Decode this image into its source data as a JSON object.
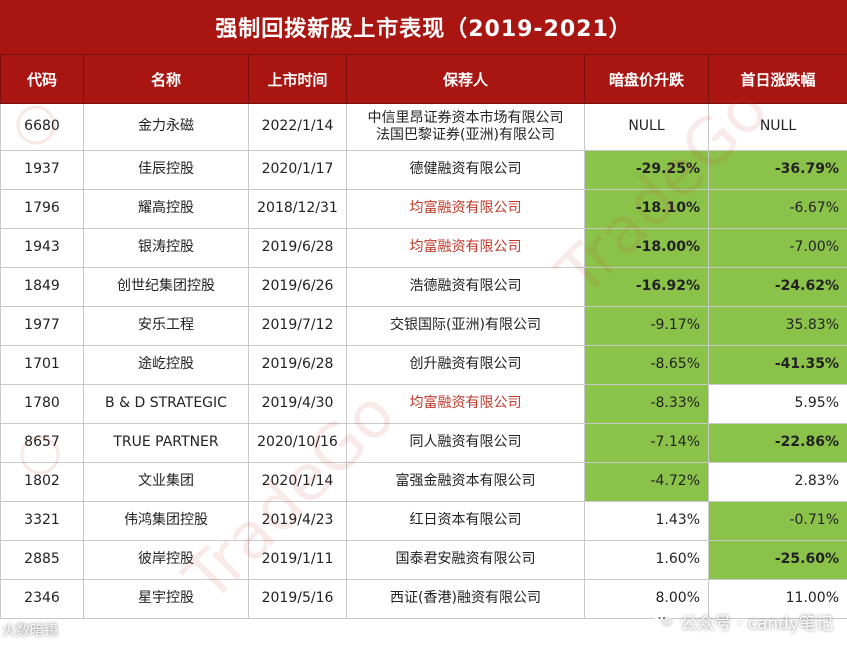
{
  "title": "强制回拨新股上市表现（2019-2021）",
  "colors": {
    "header_red": "#a91612",
    "highlight_green": "#8bc34a",
    "sponsor_red": "#c0392b"
  },
  "headers": [
    "代码",
    "名称",
    "上市时间",
    "保荐人",
    "暗盘价升跌",
    "首日涨跌幅"
  ],
  "rows": [
    {
      "code": "6680",
      "name": "金力永磁",
      "date": "2022/1/14",
      "sponsor_lines": [
        "中信里昂证券资本市场有限公司",
        "法国巴黎证券(亚洲)有限公司"
      ],
      "sponsor_red": false,
      "dark": "NULL",
      "dark_green": false,
      "dark_bold": false,
      "first": "NULL",
      "first_green": false,
      "first_bold": false
    },
    {
      "code": "1937",
      "name": "佳辰控股",
      "date": "2020/1/17",
      "sponsor_lines": [
        "德健融资有限公司"
      ],
      "sponsor_red": false,
      "dark": "-29.25%",
      "dark_green": true,
      "dark_bold": true,
      "first": "-36.79%",
      "first_green": true,
      "first_bold": true
    },
    {
      "code": "1796",
      "name": "耀高控股",
      "date": "2018/12/31",
      "sponsor_lines": [
        "均富融资有限公司"
      ],
      "sponsor_red": true,
      "dark": "-18.10%",
      "dark_green": true,
      "dark_bold": true,
      "first": "-6.67%",
      "first_green": true,
      "first_bold": false
    },
    {
      "code": "1943",
      "name": "银涛控股",
      "date": "2019/6/28",
      "sponsor_lines": [
        "均富融资有限公司"
      ],
      "sponsor_red": true,
      "dark": "-18.00%",
      "dark_green": true,
      "dark_bold": true,
      "first": "-7.00%",
      "first_green": true,
      "first_bold": false
    },
    {
      "code": "1849",
      "name": "创世纪集团控股",
      "date": "2019/6/26",
      "sponsor_lines": [
        "浩德融资有限公司"
      ],
      "sponsor_red": false,
      "dark": "-16.92%",
      "dark_green": true,
      "dark_bold": true,
      "first": "-24.62%",
      "first_green": true,
      "first_bold": true
    },
    {
      "code": "1977",
      "name": "安乐工程",
      "date": "2019/7/12",
      "sponsor_lines": [
        "交银国际(亚洲)有限公司"
      ],
      "sponsor_red": false,
      "dark": "-9.17%",
      "dark_green": true,
      "dark_bold": false,
      "first": "35.83%",
      "first_green": true,
      "first_bold": false
    },
    {
      "code": "1701",
      "name": "途屹控股",
      "date": "2019/6/28",
      "sponsor_lines": [
        "创升融资有限公司"
      ],
      "sponsor_red": false,
      "dark": "-8.65%",
      "dark_green": true,
      "dark_bold": false,
      "first": "-41.35%",
      "first_green": true,
      "first_bold": true
    },
    {
      "code": "1780",
      "name": "B & D STRATEGIC",
      "date": "2019/4/30",
      "sponsor_lines": [
        "均富融资有限公司"
      ],
      "sponsor_red": true,
      "dark": "-8.33%",
      "dark_green": true,
      "dark_bold": false,
      "first": "5.95%",
      "first_green": false,
      "first_bold": false
    },
    {
      "code": "8657",
      "name": "TRUE PARTNER",
      "date": "2020/10/16",
      "sponsor_lines": [
        "同人融资有限公司"
      ],
      "sponsor_red": false,
      "dark": "-7.14%",
      "dark_green": true,
      "dark_bold": false,
      "first": "-22.86%",
      "first_green": true,
      "first_bold": true
    },
    {
      "code": "1802",
      "name": "文业集团",
      "date": "2020/1/14",
      "sponsor_lines": [
        "富强金融资本有限公司"
      ],
      "sponsor_red": false,
      "dark": "-4.72%",
      "dark_green": true,
      "dark_bold": false,
      "first": "2.83%",
      "first_green": false,
      "first_bold": false
    },
    {
      "code": "3321",
      "name": "伟鸿集团控股",
      "date": "2019/4/23",
      "sponsor_lines": [
        "红日资本有限公司"
      ],
      "sponsor_red": false,
      "dark": "1.43%",
      "dark_green": false,
      "dark_bold": false,
      "first": "-0.71%",
      "first_green": true,
      "first_bold": false
    },
    {
      "code": "2885",
      "name": "彼岸控股",
      "date": "2019/1/11",
      "sponsor_lines": [
        "国泰君安融资有限公司"
      ],
      "sponsor_red": false,
      "dark": "1.60%",
      "dark_green": false,
      "dark_bold": false,
      "first": "-25.60%",
      "first_green": true,
      "first_bold": true
    },
    {
      "code": "2346",
      "name": "星宇控股",
      "date": "2019/5/16",
      "sponsor_lines": [
        "西证(香港)融资有限公司"
      ],
      "sponsor_red": false,
      "dark": "8.00%",
      "dark_green": false,
      "dark_bold": false,
      "first": "11.00%",
      "first_green": false,
      "first_bold": false
    }
  ],
  "watermarks": {
    "footer": "公众号 · candy笔记",
    "footer_icon": "wechat-icon",
    "corner": "火数暗镜",
    "background": "TradeGo"
  }
}
